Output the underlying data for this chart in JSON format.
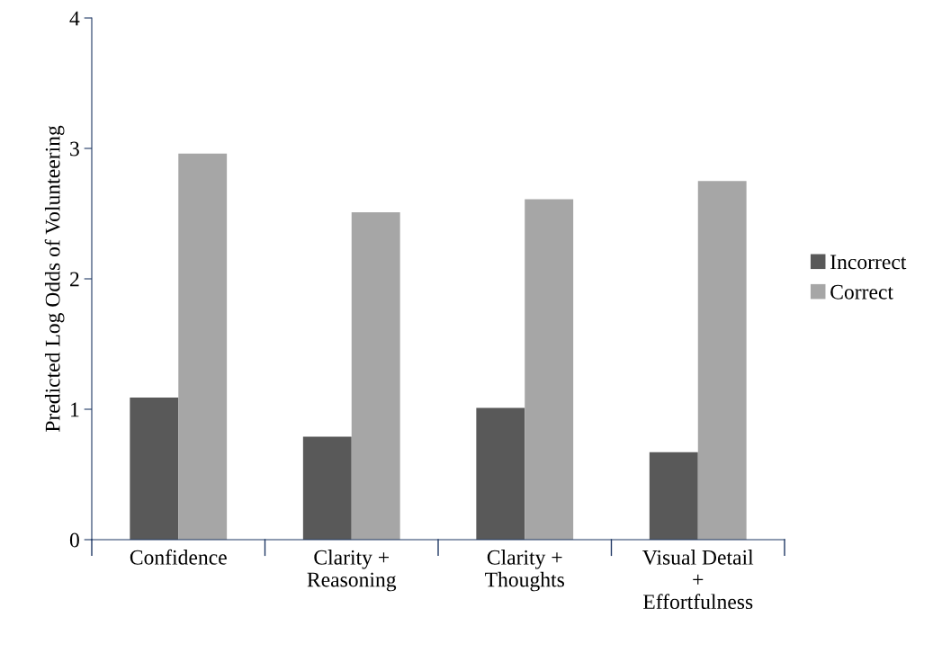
{
  "chart_data": {
    "type": "bar",
    "ylabel": "Predicted Log Odds of Volunteering",
    "categories": [
      "Confidence",
      "Clarity +\nReasoning",
      "Clarity +\nThoughts",
      "Visual Detail\n+\nEffortfulness"
    ],
    "series": [
      {
        "name": "Incorrect",
        "color": "#595959",
        "values": [
          1.09,
          0.79,
          1.01,
          0.67
        ]
      },
      {
        "name": "Correct",
        "color": "#a6a6a6",
        "values": [
          2.96,
          2.51,
          2.61,
          2.75
        ]
      }
    ],
    "ylim": [
      0,
      4
    ],
    "yticks": [
      0,
      1,
      2,
      3,
      4
    ],
    "grid": false,
    "legend": "right"
  }
}
